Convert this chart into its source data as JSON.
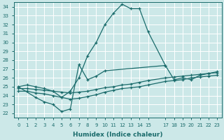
{
  "xlabel": "Humidex (Indice chaleur)",
  "background_color": "#cce8e8",
  "grid_color": "#aacccc",
  "line_color": "#1a6b6b",
  "xlim": [
    -0.5,
    23.5
  ],
  "ylim": [
    21.5,
    34.5
  ],
  "xtick_positions": [
    0,
    1,
    2,
    3,
    4,
    5,
    6,
    7,
    8,
    9,
    10,
    11,
    12,
    13,
    14,
    15,
    17,
    18,
    19,
    20,
    21,
    22,
    23
  ],
  "xtick_labels": [
    "0",
    "1",
    "2",
    "3",
    "4",
    "5",
    "6",
    "7",
    "8",
    "9",
    "10",
    "11",
    "12",
    "13",
    "14",
    "15",
    "17",
    "18",
    "19",
    "20",
    "21",
    "22",
    "23"
  ],
  "yticks": [
    22,
    23,
    24,
    25,
    26,
    27,
    28,
    29,
    30,
    31,
    32,
    33,
    34
  ],
  "series": [
    {
      "x": [
        0,
        1,
        2,
        3,
        4,
        5,
        6,
        7,
        8,
        9,
        10,
        11,
        12,
        13,
        14,
        15,
        17
      ],
      "y": [
        25.0,
        25.2,
        25.0,
        24.8,
        24.5,
        23.8,
        24.5,
        26.0,
        28.5,
        30.0,
        32.0,
        33.3,
        34.3,
        33.8,
        33.8,
        31.2,
        27.4
      ]
    },
    {
      "x": [
        0,
        2,
        3,
        4,
        5,
        6,
        7,
        8,
        9,
        10,
        17,
        18,
        19,
        20,
        21,
        22,
        23
      ],
      "y": [
        25.0,
        23.8,
        23.3,
        23.0,
        22.2,
        22.5,
        27.5,
        25.8,
        26.2,
        26.8,
        27.4,
        25.8,
        26.0,
        25.8,
        26.3,
        26.5,
        26.7
      ]
    },
    {
      "x": [
        0,
        1,
        2,
        3,
        4,
        5,
        6,
        7,
        8,
        9,
        10,
        11,
        12,
        13,
        14,
        15,
        17,
        18,
        19,
        20,
        21,
        22,
        23
      ],
      "y": [
        24.8,
        24.8,
        24.7,
        24.6,
        24.5,
        24.4,
        24.3,
        24.4,
        24.5,
        24.7,
        24.9,
        25.0,
        25.2,
        25.3,
        25.5,
        25.7,
        26.0,
        26.1,
        26.2,
        26.3,
        26.4,
        26.5,
        26.6
      ]
    },
    {
      "x": [
        0,
        1,
        2,
        3,
        4,
        5,
        6,
        7,
        8,
        9,
        10,
        11,
        12,
        13,
        14,
        15,
        17,
        18,
        19,
        20,
        21,
        22,
        23
      ],
      "y": [
        24.5,
        24.5,
        24.3,
        24.2,
        24.0,
        23.8,
        23.6,
        23.7,
        23.9,
        24.1,
        24.4,
        24.6,
        24.8,
        24.9,
        25.0,
        25.2,
        25.6,
        25.7,
        25.8,
        26.0,
        26.1,
        26.2,
        26.3
      ]
    }
  ]
}
